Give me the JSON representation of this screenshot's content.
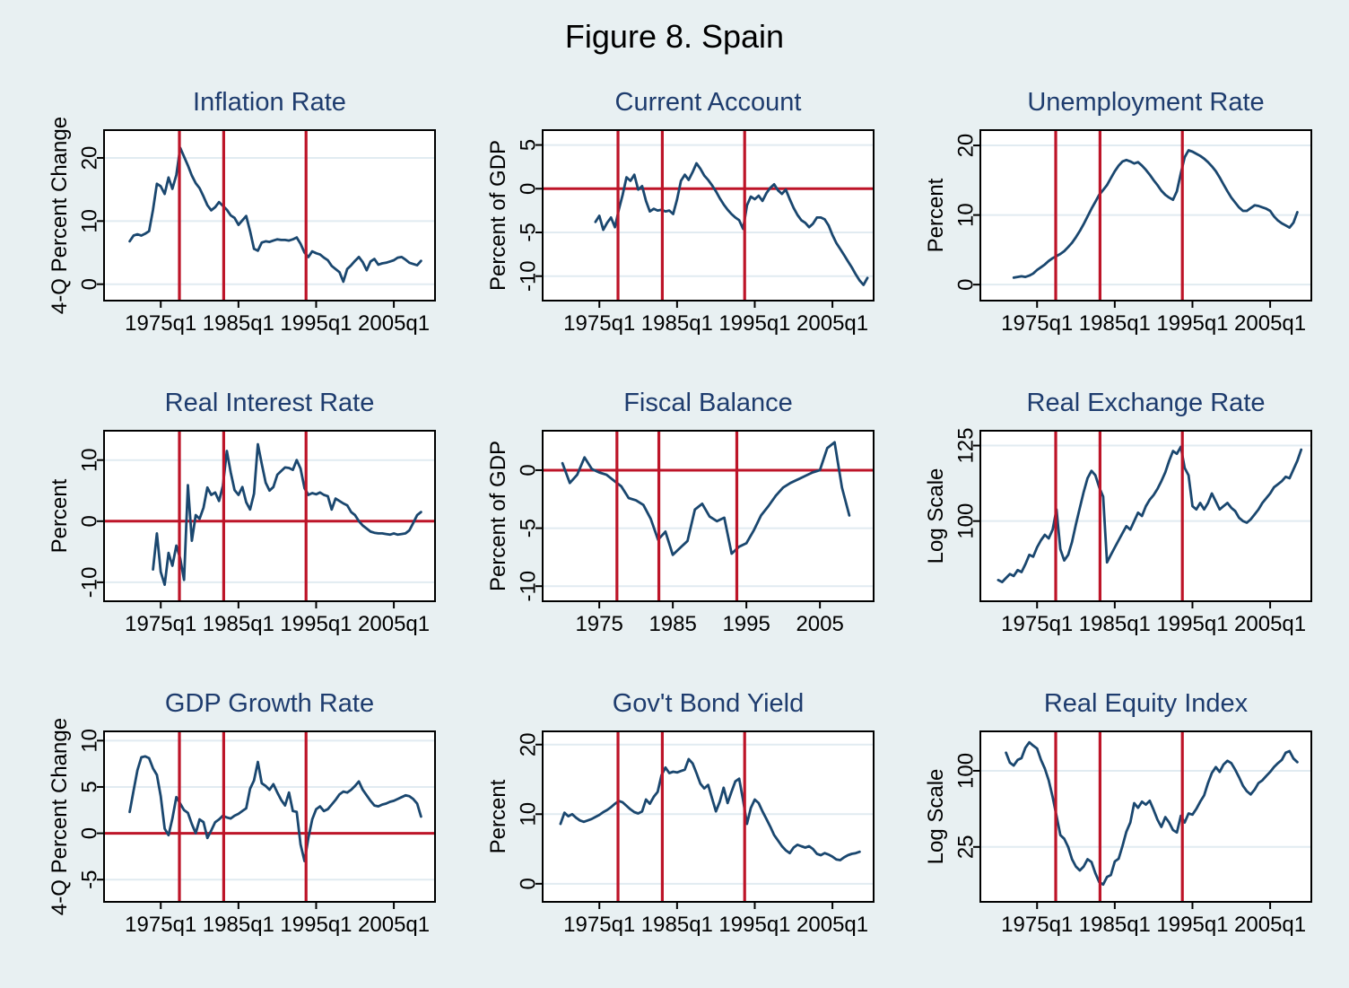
{
  "figure_title": "Figure 8. Spain",
  "colors": {
    "background": "#e8f0f2",
    "plot_background": "#ffffff",
    "grid": "#e1ebf1",
    "series_line": "#1a476f",
    "event_line": "#bd1428",
    "axis": "#000000",
    "subplot_title": "#1e3c6e",
    "main_title": "#000000"
  },
  "chart_data": [
    {
      "type": "line",
      "title": "Inflation Rate",
      "ylabel": "4-Q Percent Change",
      "yticks": [
        0,
        10,
        20
      ],
      "ylim": [
        -2.6,
        24.4
      ],
      "ylog": false,
      "xlim": [
        1967.7,
        2010.3
      ],
      "xticks": [
        1975,
        1985,
        1995,
        2005
      ],
      "xtick_labels": [
        "1975q1",
        "1985q1",
        "1995q1",
        "2005q1"
      ],
      "vlines": [
        1977.4,
        1983.1,
        1993.7
      ],
      "zero_hline": false,
      "series": {
        "name": "inflation",
        "x0": 1971,
        "dx": 0.5,
        "values": [
          6.8,
          7.7,
          7.9,
          7.7,
          8.0,
          8.4,
          11.8,
          15.9,
          15.5,
          14.3,
          16.9,
          15.1,
          17.3,
          21.6,
          20.2,
          18.8,
          17.2,
          16.0,
          15.2,
          13.9,
          12.5,
          11.7,
          12.2,
          13.0,
          12.4,
          11.8,
          10.9,
          10.5,
          9.4,
          10.1,
          10.8,
          8.4,
          5.6,
          5.3,
          6.6,
          6.8,
          6.7,
          6.9,
          7.1,
          7.0,
          7.0,
          6.9,
          7.1,
          7.4,
          6.4,
          5.0,
          4.3,
          5.2,
          4.9,
          4.7,
          4.2,
          3.8,
          2.9,
          2.4,
          1.9,
          0.4,
          2.4,
          3.0,
          3.7,
          4.3,
          3.5,
          2.2,
          3.6,
          4.0,
          3.1,
          3.3,
          3.4,
          3.6,
          3.8,
          4.2,
          4.3,
          3.9,
          3.4,
          3.2,
          3.0,
          3.7
        ]
      }
    },
    {
      "type": "line",
      "title": "Current Account",
      "ylabel": "Percent of GDP",
      "yticks": [
        5,
        0,
        -5,
        -10
      ],
      "ylim": [
        -12.8,
        6.7
      ],
      "ylog": false,
      "xlim": [
        1967.7,
        2010.3
      ],
      "xticks": [
        1975,
        1985,
        1995,
        2005
      ],
      "xtick_labels": [
        "1975q1",
        "1985q1",
        "1995q1",
        "2005q1"
      ],
      "vlines": [
        1977.4,
        1983.1,
        1993.7
      ],
      "zero_hline": true,
      "series": {
        "name": "current-account",
        "x0": 1974.5,
        "dx": 0.5,
        "values": [
          -3.8,
          -3.1,
          -4.7,
          -3.9,
          -3.3,
          -4.4,
          -2.4,
          -0.7,
          1.3,
          0.9,
          1.6,
          -0.1,
          0.3,
          -1.4,
          -2.6,
          -2.3,
          -2.5,
          -2.4,
          -2.6,
          -2.5,
          -2.9,
          -1.2,
          0.9,
          1.6,
          1.0,
          1.9,
          2.9,
          2.3,
          1.5,
          1.0,
          0.4,
          -0.3,
          -1.1,
          -1.8,
          -2.4,
          -2.9,
          -3.3,
          -3.6,
          -4.6,
          -1.9,
          -0.9,
          -1.2,
          -0.8,
          -1.4,
          -0.5,
          0.1,
          0.5,
          -0.2,
          -0.6,
          -0.1,
          -1.2,
          -2.2,
          -3.0,
          -3.6,
          -3.9,
          -4.4,
          -4.0,
          -3.3,
          -3.3,
          -3.5,
          -4.2,
          -5.3,
          -6.2,
          -6.9,
          -7.6,
          -8.3,
          -9.0,
          -9.8,
          -10.5,
          -11.0,
          -10.2
        ]
      }
    },
    {
      "type": "line",
      "title": "Unemployment Rate",
      "ylabel": "Percent",
      "yticks": [
        0,
        10,
        20
      ],
      "ylim": [
        -2.3,
        22.2
      ],
      "ylog": false,
      "xlim": [
        1967.7,
        2010.3
      ],
      "xticks": [
        1975,
        1985,
        1995,
        2005
      ],
      "xtick_labels": [
        "1975q1",
        "1985q1",
        "1995q1",
        "2005q1"
      ],
      "vlines": [
        1977.4,
        1983.1,
        1993.7
      ],
      "zero_hline": false,
      "series": {
        "name": "unemployment",
        "x0": 1972,
        "dx": 0.5,
        "values": [
          1.0,
          1.1,
          1.2,
          1.1,
          1.3,
          1.6,
          2.1,
          2.5,
          2.9,
          3.4,
          3.8,
          4.1,
          4.4,
          4.8,
          5.4,
          6.0,
          6.8,
          7.7,
          8.7,
          9.8,
          10.9,
          11.9,
          12.9,
          13.6,
          14.3,
          15.3,
          16.3,
          17.1,
          17.7,
          17.9,
          17.7,
          17.4,
          17.6,
          17.1,
          16.5,
          15.8,
          15.0,
          14.3,
          13.5,
          12.9,
          12.5,
          12.2,
          13.4,
          16.0,
          18.3,
          19.3,
          19.1,
          18.8,
          18.5,
          18.1,
          17.6,
          17.0,
          16.3,
          15.4,
          14.4,
          13.4,
          12.5,
          11.8,
          11.1,
          10.6,
          10.6,
          11.0,
          11.4,
          11.3,
          11.1,
          10.9,
          10.6,
          9.8,
          9.2,
          8.8,
          8.5,
          8.2,
          8.9,
          10.4
        ]
      }
    },
    {
      "type": "line",
      "title": "Real Interest Rate",
      "ylabel": "Percent",
      "yticks": [
        -10,
        0,
        10
      ],
      "ylim": [
        -13.1,
        14.8
      ],
      "ylog": false,
      "xlim": [
        1967.7,
        2010.3
      ],
      "xticks": [
        1975,
        1985,
        1995,
        2005
      ],
      "xtick_labels": [
        "1975q1",
        "1985q1",
        "1995q1",
        "2005q1"
      ],
      "vlines": [
        1977.4,
        1983.1,
        1993.7
      ],
      "zero_hline": true,
      "series": {
        "name": "real-interest-rate",
        "x0": 1974,
        "dx": 0.5,
        "values": [
          -7.9,
          -2.0,
          -8.3,
          -10.4,
          -5.2,
          -7.3,
          -4.0,
          -6.1,
          -9.6,
          5.9,
          -3.2,
          1.0,
          0.4,
          2.2,
          5.5,
          4.3,
          4.7,
          3.3,
          5.8,
          11.5,
          8.0,
          5.1,
          4.3,
          5.6,
          3.1,
          1.9,
          4.5,
          12.6,
          9.4,
          6.3,
          5.0,
          5.6,
          7.6,
          8.2,
          8.8,
          8.7,
          8.4,
          10.0,
          8.6,
          5.4,
          4.3,
          4.6,
          4.4,
          4.7,
          4.3,
          4.1,
          1.9,
          3.7,
          3.3,
          2.9,
          2.6,
          1.5,
          1.0,
          0.0,
          -0.7,
          -1.2,
          -1.7,
          -1.9,
          -2.0,
          -2.0,
          -2.1,
          -2.2,
          -2.0,
          -2.2,
          -2.1,
          -2.0,
          -1.5,
          -0.3,
          1.0,
          1.5
        ]
      }
    },
    {
      "type": "line",
      "title": "Fiscal Balance",
      "ylabel": "Percent of GDP",
      "yticks": [
        0,
        -5,
        -10
      ],
      "ylim": [
        -11.3,
        3.4
      ],
      "ylog": false,
      "xlim": [
        1967.3,
        2012.3
      ],
      "xticks": [
        1975,
        1985,
        1995,
        2005
      ],
      "xtick_labels": [
        "1975",
        "1985",
        "1995",
        "2005"
      ],
      "vlines": [
        1977.4,
        1983.1,
        1993.7
      ],
      "zero_hline": true,
      "series": {
        "name": "fiscal-balance",
        "x0": 1970,
        "dx": 1,
        "values": [
          0.6,
          -1.1,
          -0.4,
          1.1,
          0.1,
          -0.2,
          -0.4,
          -0.9,
          -1.4,
          -2.4,
          -2.6,
          -3.0,
          -4.2,
          -6.0,
          -5.3,
          -7.3,
          -6.7,
          -6.1,
          -3.4,
          -2.9,
          -4.0,
          -4.4,
          -4.1,
          -7.2,
          -6.6,
          -6.3,
          -5.2,
          -3.9,
          -3.1,
          -2.2,
          -1.5,
          -1.1,
          -0.8,
          -0.5,
          -0.2,
          0.0,
          1.9,
          2.4,
          -1.5,
          -3.9
        ]
      }
    },
    {
      "type": "line",
      "title": "Real Exchange Rate",
      "ylabel": "Log Scale",
      "yticks": [
        100,
        125
      ],
      "ylim": [
        78.9,
        130.6
      ],
      "ylog": true,
      "xlim": [
        1967.7,
        2010.3
      ],
      "xticks": [
        1975,
        1985,
        1995,
        2005
      ],
      "xtick_labels": [
        "1975q1",
        "1985q1",
        "1995q1",
        "2005q1"
      ],
      "vlines": [
        1977.4,
        1983.1,
        1993.7
      ],
      "zero_hline": false,
      "series": {
        "name": "real-exchange-rate",
        "x0": 1970,
        "dx": 0.5,
        "values": [
          84,
          83.5,
          84.5,
          85.5,
          85,
          86.5,
          86,
          88,
          90.5,
          90,
          92.5,
          94.5,
          96,
          95,
          97.5,
          103.5,
          92,
          89,
          90.5,
          94,
          99,
          104,
          109,
          113.5,
          116,
          114.5,
          110.5,
          107.5,
          88.5,
          90.5,
          92.5,
          94.5,
          96.5,
          98.5,
          97.5,
          100,
          102.5,
          101.5,
          104.5,
          106.5,
          108,
          110,
          112.5,
          115.5,
          119.5,
          123,
          122,
          124.5,
          117,
          114.5,
          104.5,
          103.5,
          105.5,
          103.5,
          105.5,
          108.5,
          106,
          103.5,
          104.5,
          105.5,
          104,
          103,
          101,
          100,
          99.5,
          100.5,
          102,
          103.5,
          105.5,
          107,
          108.5,
          110.5,
          111.5,
          112.5,
          114,
          113.5,
          116.5,
          119.5,
          123.5
        ]
      }
    },
    {
      "type": "line",
      "title": "GDP Growth Rate",
      "ylabel": "4-Q Percent Change",
      "yticks": [
        -5,
        0,
        5,
        10
      ],
      "ylim": [
        -7.4,
        11.0
      ],
      "ylog": false,
      "xlim": [
        1967.7,
        2010.3
      ],
      "xticks": [
        1975,
        1985,
        1995,
        2005
      ],
      "xtick_labels": [
        "1975q1",
        "1985q1",
        "1995q1",
        "2005q1"
      ],
      "vlines": [
        1977.4,
        1983.1,
        1993.7
      ],
      "zero_hline": true,
      "series": {
        "name": "gdp-growth",
        "x0": 1971,
        "dx": 0.5,
        "values": [
          2.3,
          4.6,
          6.8,
          8.2,
          8.3,
          8.1,
          7.0,
          6.3,
          4.0,
          0.5,
          -0.2,
          1.6,
          3.9,
          3.2,
          2.5,
          2.2,
          1.0,
          0.0,
          1.5,
          1.2,
          -0.5,
          0.3,
          1.2,
          1.5,
          1.9,
          1.7,
          1.6,
          1.9,
          2.1,
          2.4,
          2.7,
          4.8,
          5.7,
          7.7,
          5.4,
          5.1,
          4.7,
          5.3,
          4.4,
          3.6,
          3.0,
          4.4,
          2.4,
          2.3,
          -1.2,
          -3.0,
          -0.5,
          1.5,
          2.6,
          2.9,
          2.4,
          2.6,
          3.1,
          3.6,
          4.2,
          4.5,
          4.4,
          4.7,
          5.1,
          5.6,
          4.7,
          4.1,
          3.5,
          3.0,
          2.9,
          3.1,
          3.2,
          3.4,
          3.5,
          3.7,
          3.9,
          4.1,
          4.0,
          3.7,
          3.2,
          1.8
        ]
      }
    },
    {
      "type": "line",
      "title": "Gov't Bond Yield",
      "ylabel": "Percent",
      "yticks": [
        0,
        10,
        20
      ],
      "ylim": [
        -2.6,
        21.9
      ],
      "ylog": false,
      "xlim": [
        1967.7,
        2010.3
      ],
      "xticks": [
        1975,
        1985,
        1995,
        2005
      ],
      "xtick_labels": [
        "1975q1",
        "1985q1",
        "1995q1",
        "2005q1"
      ],
      "vlines": [
        1977.4,
        1983.1,
        1993.7
      ],
      "zero_hline": false,
      "series": {
        "name": "bond-yield",
        "x0": 1970,
        "dx": 0.5,
        "values": [
          8.6,
          10.2,
          9.7,
          10.0,
          9.5,
          9.1,
          8.9,
          9.1,
          9.3,
          9.6,
          9.9,
          10.3,
          10.6,
          11.0,
          11.5,
          11.9,
          11.7,
          11.2,
          10.7,
          10.3,
          10.1,
          10.4,
          12.1,
          11.5,
          12.5,
          13.2,
          15.6,
          16.7,
          15.9,
          16.1,
          16.0,
          16.2,
          16.4,
          17.9,
          17.3,
          15.9,
          14.4,
          13.7,
          14.2,
          12.3,
          10.4,
          11.8,
          13.8,
          11.6,
          13.2,
          14.7,
          15.1,
          12.0,
          8.6,
          10.9,
          12.1,
          11.6,
          10.4,
          9.3,
          8.2,
          7.0,
          6.2,
          5.4,
          4.8,
          4.4,
          5.2,
          5.6,
          5.4,
          5.2,
          5.4,
          5.0,
          4.3,
          4.1,
          4.4,
          4.2,
          3.9,
          3.5,
          3.4,
          3.8,
          4.1,
          4.3,
          4.4,
          4.6
        ]
      }
    },
    {
      "type": "line",
      "title": "Real Equity Index",
      "ylabel": "Log Scale",
      "yticks": [
        25,
        100
      ],
      "ylim": [
        9.2,
        205
      ],
      "ylog": true,
      "xlim": [
        1967.7,
        2010.3
      ],
      "xticks": [
        1975,
        1985,
        1995,
        2005
      ],
      "xtick_labels": [
        "1975q1",
        "1985q1",
        "1995q1",
        "2005q1"
      ],
      "vlines": [
        1977.4,
        1983.1,
        1993.7
      ],
      "zero_hline": false,
      "series": {
        "name": "real-equity-index",
        "x0": 1971,
        "dx": 0.5,
        "values": [
          139,
          116,
          110,
          122,
          126,
          152,
          168,
          158,
          150,
          122,
          104,
          84,
          62,
          44,
          31,
          29,
          25,
          20,
          17.5,
          16.3,
          17.5,
          20,
          19,
          15.5,
          13.2,
          12.6,
          14.5,
          15,
          19.2,
          20.2,
          25.5,
          33,
          39,
          55.5,
          51,
          57,
          54,
          58,
          49,
          41,
          36,
          43,
          39,
          34,
          32.5,
          44,
          39,
          46,
          45,
          50,
          57,
          64,
          80,
          96,
          107,
          98,
          112,
          120,
          115,
          102,
          89,
          76,
          69,
          65,
          71,
          80,
          84,
          91,
          98,
          107,
          115,
          122,
          139,
          143,
          125,
          117
        ]
      }
    }
  ]
}
